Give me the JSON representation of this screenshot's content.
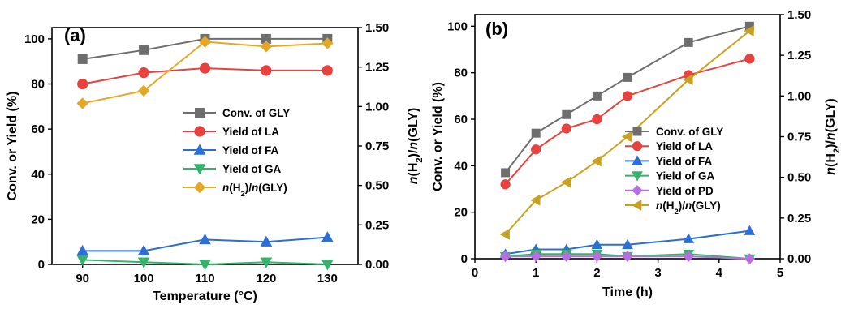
{
  "chart_data": [
    {
      "type": "line",
      "panel_label": "(a)",
      "xlabel": "Temperature (°C)",
      "ylabel": "Conv. or Yield (%)",
      "y2label_parts": [
        "n",
        "(H",
        "2",
        ")/",
        "n",
        "(GLY)"
      ],
      "xlim": [
        85,
        135
      ],
      "ylim": [
        0,
        105
      ],
      "y2lim": [
        0,
        1.5
      ],
      "xticks": [
        90,
        100,
        110,
        120,
        130
      ],
      "yticks": [
        0,
        20,
        40,
        60,
        80,
        100
      ],
      "y2ticks": [
        "0.00",
        "0.25",
        "0.50",
        "0.75",
        "1.00",
        "1.25",
        "1.50"
      ],
      "legend_position": "right-center",
      "x": [
        90,
        100,
        110,
        120,
        130
      ],
      "series": [
        {
          "name": "Conv. of GLY",
          "axis": "left",
          "color": "#6e6e6e",
          "marker": "square",
          "values": [
            91,
            95,
            100,
            100,
            100
          ]
        },
        {
          "name": "Yield of LA",
          "axis": "left",
          "color": "#e8413e",
          "marker": "circle",
          "values": [
            80,
            85,
            87,
            86,
            86
          ]
        },
        {
          "name": "Yield of FA",
          "axis": "left",
          "color": "#2b6fd6",
          "marker": "triangle-up",
          "values": [
            6,
            6,
            11,
            10,
            12
          ]
        },
        {
          "name": "Yield of GA",
          "axis": "left",
          "color": "#35b36a",
          "marker": "triangle-down",
          "values": [
            2,
            1,
            0,
            1,
            0
          ]
        },
        {
          "name_parts": [
            "n",
            "(H",
            "2",
            ")/",
            "n",
            "(GLY)"
          ],
          "axis": "right",
          "color": "#e4a824",
          "marker": "diamond",
          "values": [
            1.02,
            1.1,
            1.41,
            1.38,
            1.4
          ]
        }
      ]
    },
    {
      "type": "line",
      "panel_label": "(b)",
      "xlabel": "Time (h)",
      "ylabel": "Conv. or Yield (%)",
      "y2label_parts": [
        "n",
        "(H",
        "2",
        ")/",
        "n",
        "(GLY)"
      ],
      "xlim": [
        0,
        5
      ],
      "ylim": [
        0,
        105
      ],
      "y2lim": [
        0,
        1.5
      ],
      "xticks": [
        0,
        1,
        2,
        3,
        4,
        5
      ],
      "yticks": [
        0,
        20,
        40,
        60,
        80,
        100
      ],
      "y2ticks": [
        "0.00",
        "0.25",
        "0.50",
        "0.75",
        "1.00",
        "1.25",
        "1.50"
      ],
      "legend_position": "right-center",
      "x": [
        0.5,
        1,
        1.5,
        2,
        2.5,
        3.5,
        4.5
      ],
      "series": [
        {
          "name": "Conv. of GLY",
          "axis": "left",
          "color": "#6e6e6e",
          "marker": "square",
          "values": [
            37,
            54,
            62,
            70,
            78,
            93,
            100
          ]
        },
        {
          "name": "Yield of LA",
          "axis": "left",
          "color": "#e8413e",
          "marker": "circle",
          "values": [
            32,
            47,
            56,
            60,
            70,
            79,
            86
          ]
        },
        {
          "name": "Yield of FA",
          "axis": "left",
          "color": "#2b6fd6",
          "marker": "triangle-up",
          "values": [
            2,
            4,
            4,
            6,
            6,
            8.5,
            12
          ]
        },
        {
          "name": "Yield of GA",
          "axis": "left",
          "color": "#35b36a",
          "marker": "triangle-down",
          "values": [
            1,
            2,
            2,
            2,
            1,
            2,
            0
          ]
        },
        {
          "name": "Yield of PD",
          "axis": "left",
          "color": "#b86fe0",
          "marker": "diamond",
          "values": [
            1,
            1,
            1,
            1,
            1,
            1,
            0
          ]
        },
        {
          "name_parts": [
            "n",
            "(H",
            "2",
            ")/",
            "n",
            "(GLY)"
          ],
          "axis": "right",
          "color": "#c8a21e",
          "marker": "triangle-left",
          "values": [
            0.15,
            0.36,
            0.47,
            0.6,
            0.75,
            1.1,
            1.4
          ]
        }
      ]
    }
  ]
}
